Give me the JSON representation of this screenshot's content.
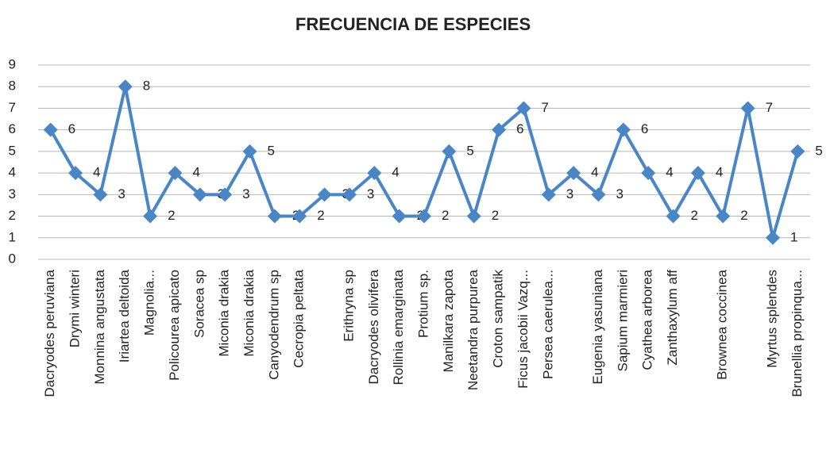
{
  "chart_data": {
    "type": "line",
    "title": "FRECUENCIA DE  ESPECIES",
    "categories": [
      "Dacryodes peruviana",
      "Drymi winteri",
      "Monnina angustata",
      "Iriartea deltoida",
      "Magnolia...",
      "Policourea apicato",
      "Soracea sp",
      "Miconia drakia",
      "Miconia drakia",
      "Canyodendrum sp",
      "Cecropia peltata",
      null,
      "Erithryna sp",
      "Dacryodes olivifera",
      "Rollinia emarginata",
      "Protium sp.",
      "Manilkara zapota",
      "Neetandra purpurea",
      "Croton sampatik",
      "Ficus jacobii Vazq...",
      "Persea caerulea...",
      null,
      "Eugenia yasuniana",
      "Sapium marmieri",
      "Cyathea arborea",
      "Zanthaxylum aff",
      null,
      "Brownea coccinea",
      null,
      "Myrtus splendes",
      "Brunellia propinqua..."
    ],
    "values": [
      6,
      4,
      3,
      8,
      2,
      4,
      3,
      3,
      5,
      2,
      2,
      3,
      3,
      4,
      2,
      2,
      5,
      2,
      6,
      7,
      3,
      4,
      3,
      6,
      4,
      2,
      4,
      2,
      7,
      1,
      5
    ],
    "color": "#4a86c5",
    "ylim": [
      0,
      9
    ],
    "yticks": [
      0,
      1,
      2,
      3,
      4,
      5,
      6,
      7,
      8,
      9
    ],
    "grid": true
  }
}
